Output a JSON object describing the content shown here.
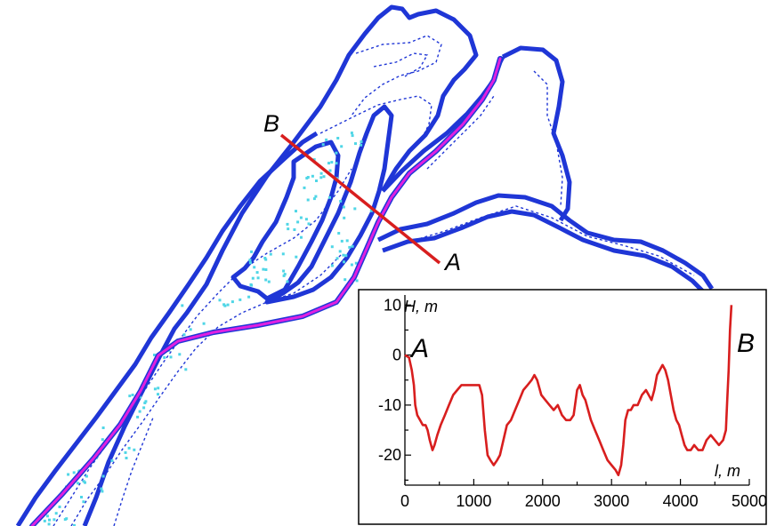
{
  "map": {
    "section_start_label": "A",
    "section_end_label": "B",
    "colors": {
      "shoreline": "#1f36d6",
      "isobath": "#1f36d6",
      "soundings": "#4fd6e6",
      "fairway": "#e020e0",
      "section_line": "#d81e1e"
    }
  },
  "chart_data": {
    "type": "line",
    "xlabel": "l, m",
    "ylabel": "H, m",
    "xlim": [
      0,
      5000
    ],
    "ylim": [
      -26,
      12
    ],
    "x_ticks": [
      "0",
      "1000",
      "2000",
      "3000",
      "4000",
      "5000"
    ],
    "y_ticks": [
      "10",
      "0",
      "-10",
      "-20"
    ],
    "annotations": [
      "A",
      "B"
    ],
    "grid": false,
    "series": [
      {
        "color": "#d81e1e",
        "x": [
          0,
          60,
          100,
          130,
          150,
          180,
          220,
          260,
          300,
          330,
          360,
          400,
          430,
          470,
          520,
          580,
          640,
          700,
          760,
          820,
          880,
          940,
          1000,
          1040,
          1080,
          1120,
          1160,
          1200,
          1240,
          1290,
          1340,
          1380,
          1430,
          1480,
          1540,
          1600,
          1660,
          1720,
          1780,
          1840,
          1880,
          1920,
          1980,
          2040,
          2100,
          2160,
          2220,
          2280,
          2340,
          2400,
          2450,
          2500,
          2540,
          2580,
          2620,
          2660,
          2700,
          2760,
          2820,
          2880,
          2940,
          3000,
          3060,
          3100,
          3140,
          3170,
          3200,
          3240,
          3280,
          3320,
          3380,
          3440,
          3500,
          3540,
          3580,
          3620,
          3660,
          3700,
          3740,
          3780,
          3820,
          3860,
          3900,
          3940,
          3980,
          4020,
          4060,
          4100,
          4150,
          4200,
          4260,
          4320,
          4380,
          4440,
          4500,
          4560,
          4620,
          4660,
          4680,
          4700,
          4720,
          4740
        ],
        "y": [
          0,
          -0.5,
          -3,
          -6,
          -10,
          -12,
          -13,
          -14,
          -14,
          -15,
          -17,
          -19,
          -18,
          -16,
          -14,
          -12,
          -10,
          -8,
          -7,
          -6,
          -6,
          -6,
          -6,
          -6,
          -6,
          -8,
          -15,
          -20,
          -21,
          -22,
          -21,
          -20,
          -17,
          -14,
          -13,
          -11,
          -9,
          -7,
          -6,
          -5,
          -4,
          -5,
          -8,
          -9,
          -10,
          -11,
          -10,
          -12,
          -13,
          -13,
          -12,
          -7,
          -6,
          -8,
          -9,
          -11,
          -13,
          -15,
          -17,
          -19,
          -21,
          -22,
          -23,
          -24,
          -22,
          -18,
          -13,
          -11,
          -11,
          -10,
          -10,
          -8,
          -7,
          -8,
          -9,
          -7,
          -4,
          -3,
          -2,
          -3,
          -5,
          -8,
          -11,
          -13,
          -14,
          -16,
          -18,
          -19,
          -19,
          -18,
          -19,
          -19,
          -17,
          -16,
          -17,
          -18,
          -17,
          -15,
          -9,
          -3,
          5,
          10
        ]
      }
    ]
  }
}
